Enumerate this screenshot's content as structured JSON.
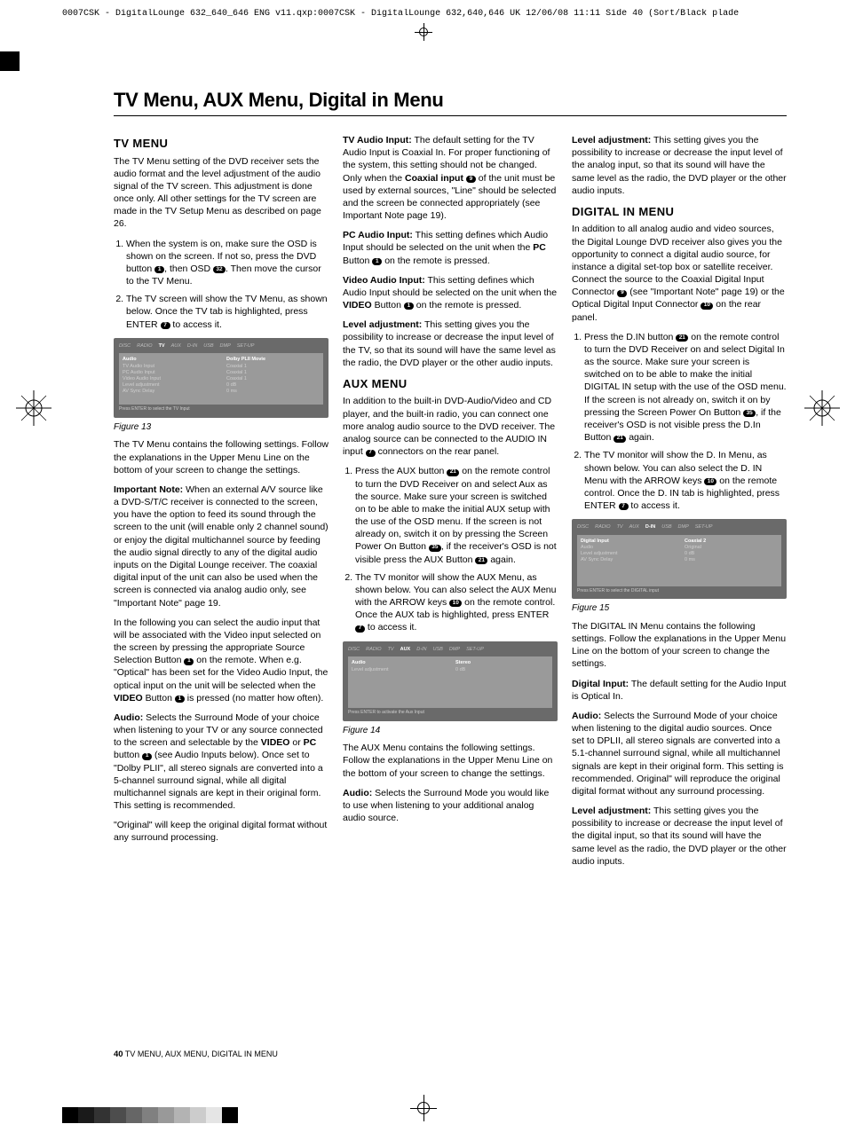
{
  "header_strip": "0007CSK - DigitalLounge 632_640_646 ENG v11.qxp:0007CSK - DigitalLounge 632,640,646 UK  12/06/08  11:11  Side 40   (Sort/Black plade",
  "page_title": "TV Menu, AUX Menu, Digital in Menu",
  "tv": {
    "heading": "TV MENU",
    "intro": "The TV Menu setting of the DVD receiver sets the audio format and the level adjustment of the audio signal of the TV screen. This adjustment is done once only. All other settings for the TV screen are made in the TV Setup Menu as described on page 26.",
    "step1_a": "When the system is on, make sure the OSD is shown on the screen. If not so, press the DVD button ",
    "step1_b": ", then OSD ",
    "step1_c": ". Then move the cursor to the TV Menu.",
    "step2_a": "The TV screen will show the TV Menu, as shown below. Once the TV tab is highlighted, press ENTER ",
    "step2_b": " to access it.",
    "fig13": "Figure 13",
    "after_fig": "The TV Menu contains the following settings. Follow the explanations in the Upper Menu Line on the bottom of your screen to change the settings.",
    "note_label": "Important Note:",
    "note_body": " When an external A/V source like a DVD-S/T/C receiver is connected to the screen, you have the option to feed its sound through the screen to the unit (will enable only 2 channel sound) or enjoy the digital multichannel source by feeding the audio signal directly to any of the digital audio inputs on the Digital Lounge receiver. The coaxial digital input of the unit can also be used when the screen is connected via analog audio only, see \"Important Note\" page 19.",
    "following_a": "In the following you can select the audio input that will be associated with the Video input selected on the screen by pressing the appropriate Source Selection Button ",
    "following_b": " on the remote. When e.g. \"Optical\" has been set for the Video Audio Input, the optical input on the unit will be selected when the ",
    "following_video": "VIDEO",
    "following_c": " Button ",
    "following_d": " is pressed (no matter how often).",
    "audio_label": "Audio:",
    "audio_body_a": " Selects the Surround Mode of your choice when listening to your TV or any source connected to the screen and selectable by the ",
    "audio_body_b": " or ",
    "audio_body_pc": "PC",
    "audio_body_c": " button ",
    "audio_body_d": " (see Audio Inputs below). Once set to \"Dolby PLII\", all stereo signals are converted into a 5-channel surround signal, while all digital multichannel signals are kept in their original form. This setting is recommended.",
    "original": "\"Original\" will keep the original digital format without any surround processing.",
    "tvaudio_label": "TV Audio Input:",
    "tvaudio_body_a": " The default setting for the TV Audio Input is Coaxial In. For proper functioning of the system, this setting should not be changed. Only when the ",
    "tvaudio_coax": "Coaxial input ",
    "tvaudio_body_b": " of the unit must be used by external sources, \"Line\" should be selected and the screen be connected appropriately (see Important Note page 19).",
    "pcaudio_label": "PC Audio Input:",
    "pcaudio_body_a": " This setting defines which Audio Input should be selected on the unit when the ",
    "pcaudio_body_b": " Button ",
    "pcaudio_body_c": " on the remote is pressed.",
    "vidaudio_label": "Video Audio Input:",
    "vidaudio_body_a": " This setting defines which Audio Input should be selected on the unit when the ",
    "vidaudio_body_b": " Button ",
    "vidaudio_body_c": " on the remote is pressed.",
    "level_label": "Level adjustment:",
    "level_body": " This setting gives you the possibility to increase or decrease the input level of the TV, so that its sound will have the same level as the radio, the DVD player or the other audio inputs."
  },
  "aux": {
    "heading": "AUX MENU",
    "intro_a": "In addition to the built-in DVD-Audio/Video and CD player, and the built-in radio, you can connect one more analog audio source to the DVD receiver. The analog source can be connected to the AUDIO IN input ",
    "intro_b": " connectors on the rear panel.",
    "step1_a": "Press the AUX button ",
    "step1_b": " on the remote control to turn the DVD Receiver on and select Aux as the source. Make sure your screen is switched on to be able to make the initial AUX setup with the use of the OSD menu. If the screen is not already on, switch it on by pressing the Screen Power On Button ",
    "step1_c": ", if the receiver's OSD is not visible press the AUX Button ",
    "step1_d": " again.",
    "step2_a": "The TV monitor will show the AUX Menu, as shown below. You can also select the AUX Menu with the ARROW keys ",
    "step2_b": " on the remote control. Once the AUX tab is highlighted, press ENTER ",
    "step2_c": " to access it.",
    "fig14": "Figure 14",
    "after": "The AUX Menu contains the following settings. Follow the explanations in the Upper Menu Line on the bottom of your screen to change the settings.",
    "audio_label": "Audio:",
    "audio_body": " Selects the Surround Mode you would like to use when listening to your additional analog audio source.",
    "level_label": "Level adjustment:",
    "level_body": " This setting gives you the possibility to increase or decrease the input level of the analog input, so that its sound will have the same level as the radio, the DVD player or the other audio inputs."
  },
  "din": {
    "heading": "DIGITAL IN MENU",
    "intro_a": "In addition to all analog audio and video sources, the Digital Lounge DVD receiver also gives you the opportunity to connect a digital audio source, for instance a digital set-top box or satellite receiver. Connect the source to the Coaxial Digital Input Connector ",
    "intro_b": " (see \"Important Note\" page 19) or the Optical Digital Input Connector ",
    "intro_c": " on the rear panel.",
    "step1_a": "Press the D.IN button ",
    "step1_b": " on the remote control to turn the DVD Receiver on and select Digital In as the source. Make sure your screen is switched on to be able to make the initial DIGITAL IN setup with the use of the OSD menu. If the screen is not already on, switch it on by pressing the Screen Power On Button ",
    "step1_c": ", if the receiver's OSD is not visible press the D.In Button ",
    "step1_d": " again.",
    "step2_a": "The TV monitor will show the D. In Menu, as shown below. You can also select the D. IN Menu with the ARROW keys ",
    "step2_b": " on the remote control. Once the D. IN tab is highlighted, press ENTER ",
    "step2_c": " to access it.",
    "fig15": "Figure 15",
    "after": "The DIGITAL IN Menu contains the following settings. Follow the explanations in the Upper Menu Line on the bottom of your screen to change the settings.",
    "dinput_label": "Digital Input:",
    "dinput_body": " The default setting for the Audio Input is Optical In.",
    "audio_label": "Audio:",
    "audio_body": " Selects the Surround Mode of your choice when listening to the digital audio sources. Once set to DPLII, all stereo signals are converted into a 5.1-channel surround signal, while all multichannel signals are kept in their original form. This setting is recommended. Original\" will reproduce the original digital format without any surround processing.",
    "level_label": "Level adjustment:",
    "level_body": " This setting gives you the possibility to increase or decrease the input level of the digital input, so that its sound will have the same level as the radio, the DVD player or the other audio inputs."
  },
  "osd13": {
    "tabs": [
      "DISC",
      "RADIO",
      "TV",
      "AUX",
      "D-IN",
      "USB",
      "DMP",
      "SET-UP"
    ],
    "active": 2,
    "left_hdr": "Audio",
    "left": [
      "TV Audio Input",
      "PC Audio Input",
      "Video Audio Input",
      "Level adjustment",
      "AV Sync Delay"
    ],
    "right_hdr": "Dolby PLII Movie",
    "right": [
      "Coaxial 1",
      "Coaxial 1",
      "Coaxial 1",
      "0 dB",
      "0 ms"
    ],
    "footer": "Press ENTER to select the TV Input"
  },
  "osd14": {
    "tabs": [
      "DISC",
      "RADIO",
      "TV",
      "AUX",
      "D-IN",
      "USB",
      "DMP",
      "SET-UP"
    ],
    "active": 3,
    "left_hdr": "Audio",
    "left": [
      "Level adjustment"
    ],
    "right_hdr": "Stereo",
    "right": [
      "0 dB"
    ],
    "footer": "Press ENTER to activate the Aux Input"
  },
  "osd15": {
    "tabs": [
      "DISC",
      "RADIO",
      "TV",
      "AUX",
      "D-IN",
      "USB",
      "DMP",
      "SET-UP"
    ],
    "active": 4,
    "left_hdr": "Digital Input",
    "left": [
      "Audio",
      "Level adjustment",
      "AV Sync Delay"
    ],
    "right_hdr": "Coaxial 2",
    "right": [
      "Original",
      "0 dB",
      "0 ms"
    ],
    "footer": "Press ENTER to select the DIGITAL input"
  },
  "footer_num": "40",
  "footer_text": " TV MENU, AUX MENU, DIGITAL IN MENU",
  "color_bar": [
    "#000000",
    "#1a1a1a",
    "#333333",
    "#4d4d4d",
    "#666666",
    "#808080",
    "#999999",
    "#b3b3b3",
    "#cccccc",
    "#e5e5e5",
    "#000000"
  ],
  "icons": {
    "n1": "1",
    "n7": "7",
    "n9": "9",
    "n10": "10",
    "n21": "21",
    "n32": "32",
    "n35": "35"
  }
}
